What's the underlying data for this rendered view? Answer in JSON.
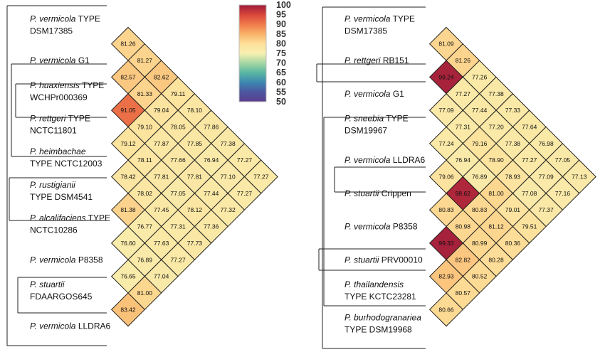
{
  "colorbar": {
    "ticks": [
      "100",
      "95",
      "90",
      "85",
      "80",
      "75",
      "70",
      "65",
      "60",
      "55",
      "50"
    ],
    "stops": [
      "#9e1b3b",
      "#d8463b",
      "#f07b4a",
      "#f9b26a",
      "#fde09a",
      "#f7f0b2",
      "#a6d7a3",
      "#59b6a2",
      "#3c87b0",
      "#4d56a0",
      "#5b3e8e"
    ]
  },
  "colors": {
    "line": "#222222",
    "text": "#111111"
  },
  "panels": [
    {
      "id": "left",
      "labels": [
        {
          "italic": "P. vermicola",
          "rest": " TYPE",
          "line2": "DSM17385"
        },
        {
          "italic": "P. vermicola",
          "rest": " G1",
          "line2": ""
        },
        {
          "italic": "P. huaxiensis",
          "rest": " TYPE",
          "line2": "WCHPr000369"
        },
        {
          "italic": "P. rettgeri",
          "rest": " TYPE",
          "line2": "NCTC11801"
        },
        {
          "italic": "P. heimbachae",
          "rest": "",
          "line2": "TYPE NCTC12003"
        },
        {
          "italic": "P. rustigianii",
          "rest": "",
          "line2": "TYPE DSM4541"
        },
        {
          "italic": "P. alcalifaciens",
          "rest": " TYPE",
          "line2": "NCTC10286"
        },
        {
          "italic": "P. vermicola",
          "rest": " P8358",
          "line2": ""
        },
        {
          "italic": "P. stuartii",
          "rest": "",
          "line2": "FDAARGOS645"
        },
        {
          "italic": "P. vermicola",
          "rest": " LLDRA6",
          "line2": ""
        }
      ],
      "matrix": [
        [
          "81.26",
          "81.27",
          "82.62",
          "79.11",
          "78.10",
          "77.86",
          "77.38",
          "77.27",
          "77.27"
        ],
        [
          "82.57",
          "81.33",
          "79.04",
          "78.05",
          "77.85",
          "76.94",
          "77.10",
          "77.27"
        ],
        [
          "91.05",
          "79.10",
          "77.87",
          "77.66",
          "77.81",
          "77.44",
          "77.32"
        ],
        [
          "79.12",
          "78.11",
          "77.81",
          "77.05",
          "78.12",
          "77.36"
        ],
        [
          "78.42",
          "78.02",
          "77.45",
          "77.31",
          "77.73"
        ],
        [
          "81.38",
          "76.77",
          "77.63",
          "77.27"
        ],
        [
          "76.60",
          "76.89",
          "77.04"
        ],
        [
          "76.65",
          "81.00"
        ],
        [
          "83.42"
        ],
        []
      ]
    },
    {
      "id": "right",
      "labels": [
        {
          "italic": "P. vermicola",
          "rest": " TYPE",
          "line2": "DSM17385"
        },
        {
          "italic": "P. rettgeri",
          "rest": " RB151",
          "line2": ""
        },
        {
          "italic": "P. vermicola",
          "rest": " G1",
          "line2": ""
        },
        {
          "italic": "P. sneebia",
          "rest": " TYPE",
          "line2": "DSM19967"
        },
        {
          "italic": "P. vermicola",
          "rest": " LLDRA6",
          "line2": ""
        },
        {
          "italic": "P. stuartii",
          "rest": " Crippen",
          "line2": ""
        },
        {
          "italic": "P. vermicola",
          "rest": " P8358",
          "line2": ""
        },
        {
          "italic": "P. stuartii",
          "rest": " PRV00010",
          "line2": ""
        },
        {
          "italic": "P. thailandensis",
          "rest": "",
          "line2": "TYPE KCTC23281"
        },
        {
          "italic": "P. burhodogranariea",
          "rest": "",
          "line2": "TYPE DSM19968"
        }
      ],
      "matrix": [
        [
          "81.09",
          "81.26",
          "77.26",
          "77.38",
          "77.33",
          "77.64",
          "76.98",
          "77.05",
          "77.13"
        ],
        [
          "99.24",
          "77.27",
          "77.44",
          "77.20",
          "77.38",
          "77.27",
          "77.09",
          "77.16"
        ],
        [
          "77.09",
          "77.31",
          "79.16",
          "78.90",
          "78.93",
          "77.08",
          "77.37"
        ],
        [
          "77.24",
          "76.94",
          "76.89",
          "81.00",
          "79.01",
          "79.51"
        ],
        [
          "79.06",
          "98.62",
          "80.83",
          "81.12",
          "80.36"
        ],
        [
          "80.83",
          "80.98",
          "80.99",
          "80.28"
        ],
        [
          "99.33",
          "82.82",
          "80.52"
        ],
        [
          "82.93",
          "80.57"
        ],
        [
          "80.66"
        ],
        []
      ]
    }
  ]
}
